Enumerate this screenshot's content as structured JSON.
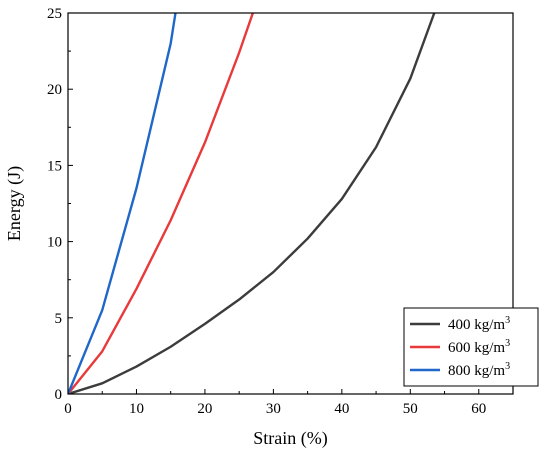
{
  "chart_data": {
    "type": "line",
    "xlabel": "Strain (%)",
    "ylabel": "Energy (J)",
    "xlim": [
      0,
      65
    ],
    "ylim": [
      0,
      25
    ],
    "xticks": [
      0,
      10,
      20,
      30,
      40,
      50,
      60
    ],
    "yticks": [
      0,
      5,
      10,
      15,
      20,
      25
    ],
    "xtick_labels": [
      "0",
      "10",
      "20",
      "30",
      "40",
      "50",
      "60"
    ],
    "ytick_labels": [
      "0",
      "5",
      "10",
      "15",
      "20",
      "25"
    ],
    "grid": false,
    "legend_position": "bottom-right",
    "series": [
      {
        "name": "400 kg/m³",
        "legend_main": "400 kg/m",
        "legend_sup": "3",
        "color": "#3c3c3c",
        "x": [
          0,
          5,
          10,
          15,
          20,
          25,
          30,
          35,
          40,
          45,
          50,
          53.5
        ],
        "y": [
          0,
          0.7,
          1.8,
          3.1,
          4.6,
          6.2,
          8.0,
          10.2,
          12.8,
          16.2,
          20.7,
          25
        ]
      },
      {
        "name": "600 kg/m³",
        "legend_main": "600 kg/m",
        "legend_sup": "3",
        "color": "#e8393b",
        "x": [
          0,
          5,
          10,
          15,
          20,
          25,
          27
        ],
        "y": [
          0,
          2.8,
          6.9,
          11.4,
          16.5,
          22.4,
          25
        ]
      },
      {
        "name": "800 kg/m³",
        "legend_main": "800 kg/m",
        "legend_sup": "3",
        "color": "#1f67c9",
        "x": [
          0,
          5,
          10,
          15,
          15.7
        ],
        "y": [
          0,
          5.5,
          13.5,
          23.0,
          25
        ]
      }
    ]
  }
}
